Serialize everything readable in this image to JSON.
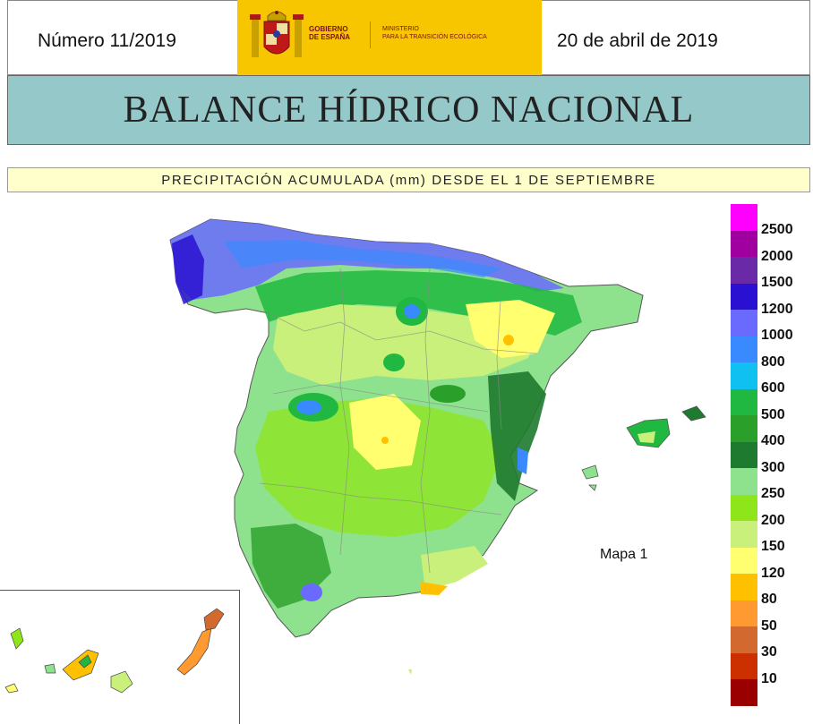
{
  "header": {
    "issue": "Número 11/2019",
    "date": "20 de abril de 2019",
    "logo": {
      "line1": "GOBIERNO",
      "line2": "DE ESPAÑA",
      "ministry1": "MINISTERIO",
      "ministry2": "PARA LA TRANSICIÓN ECOLÓGICA",
      "background": "#f7c600"
    }
  },
  "title": "BALANCE HÍDRICO NACIONAL",
  "subtitle": "PRECIPITACIÓN ACUMULADA (mm) DESDE EL 1 DE SEPTIEMBRE",
  "map": {
    "label": "Mapa 1",
    "colors": {
      "ocean": "#ffffff",
      "title_bg": "#95c8c9",
      "subtitle_bg": "#ffffcc"
    }
  },
  "legend": [
    {
      "label": "2500",
      "color": "#ff00ff"
    },
    {
      "label": "2000",
      "color": "#a000a0"
    },
    {
      "label": "1500",
      "color": "#6a2aa8"
    },
    {
      "label": "1200",
      "color": "#2a10d0"
    },
    {
      "label": "1000",
      "color": "#6a6aff"
    },
    {
      "label": "800",
      "color": "#3a8aff"
    },
    {
      "label": "600",
      "color": "#10c0f0"
    },
    {
      "label": "500",
      "color": "#20b840"
    },
    {
      "label": "400",
      "color": "#2aa02a"
    },
    {
      "label": "300",
      "color": "#1e7a2e"
    },
    {
      "label": "250",
      "color": "#8ee28e"
    },
    {
      "label": "200",
      "color": "#8ee61a"
    },
    {
      "label": "150",
      "color": "#c8f07a"
    },
    {
      "label": "120",
      "color": "#ffff70"
    },
    {
      "label": "80",
      "color": "#ffc000"
    },
    {
      "label": "50",
      "color": "#ff9a30"
    },
    {
      "label": "30",
      "color": "#d26a30"
    },
    {
      "label": "10",
      "color": "#cc3000"
    },
    {
      "label": "",
      "color": "#9a0000"
    }
  ]
}
